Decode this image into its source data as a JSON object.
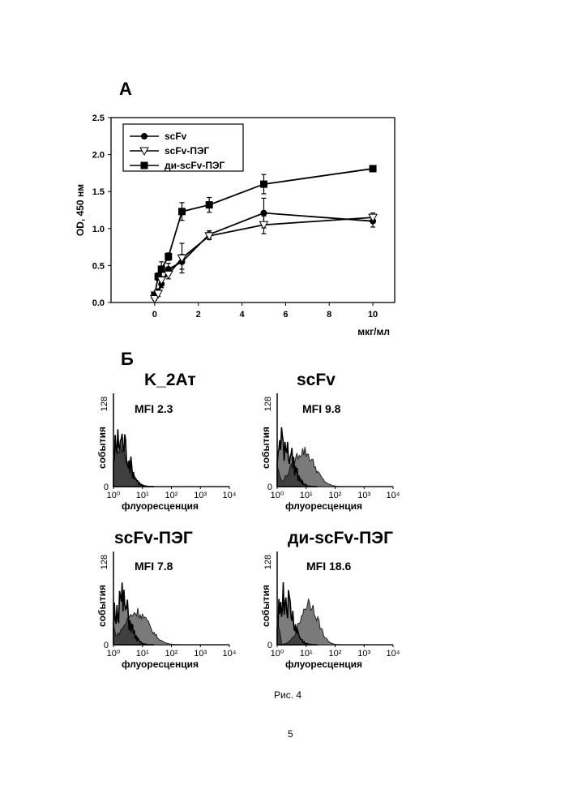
{
  "panel_a_label": "А",
  "panel_b_label": "Б",
  "caption": "Рис. 4",
  "page_number": "5",
  "chart_data": [
    {
      "type": "line",
      "xlabel": "мкг/мл",
      "ylabel": "OD, 450 нм",
      "xlim": [
        -2,
        11
      ],
      "ylim": [
        0,
        2.5
      ],
      "xticks": [
        0,
        2,
        4,
        6,
        8,
        10
      ],
      "yticks": [
        0.0,
        0.5,
        1.0,
        1.5,
        2.0,
        2.5
      ],
      "ytick_labels": [
        "0.0",
        "0.5",
        "1.0",
        "1.5",
        "2.0",
        "2.5"
      ],
      "grid": false,
      "legend_position": "top-left",
      "series": [
        {
          "name": "scFv",
          "marker": "circle",
          "x": [
            0,
            0.16,
            0.31,
            0.63,
            1.25,
            2.5,
            5,
            10
          ],
          "y": [
            0.08,
            0.15,
            0.25,
            0.45,
            0.55,
            0.92,
            1.21,
            1.1
          ],
          "err": [
            0.03,
            0.03,
            0.05,
            0.08,
            0.1,
            0.05,
            0.2,
            0.08
          ]
        },
        {
          "name": "scFv-ПЭГ",
          "marker": "triangle-down",
          "x": [
            0,
            0.16,
            0.31,
            0.63,
            1.25,
            2.5,
            5,
            10
          ],
          "y": [
            0.05,
            0.12,
            0.3,
            0.38,
            0.6,
            0.9,
            1.05,
            1.15
          ],
          "err": [
            0.02,
            0.04,
            0.05,
            0.06,
            0.2,
            0.05,
            0.12,
            0.06
          ]
        },
        {
          "name": "ди-scFv-ПЭГ",
          "marker": "square",
          "x": [
            0,
            0.16,
            0.31,
            0.63,
            1.25,
            2.5,
            5,
            10
          ],
          "y": [
            0.1,
            0.35,
            0.45,
            0.62,
            1.23,
            1.32,
            1.6,
            1.81
          ],
          "err": [
            0.04,
            0.05,
            0.1,
            0.05,
            0.12,
            0.1,
            0.13,
            0.04
          ]
        }
      ]
    },
    {
      "type": "area",
      "title": "K_2Ат",
      "annotation": "MFI 2.3",
      "xlabel": "флуоресценция",
      "ylabel": "события",
      "x_scale": "log",
      "xlim": [
        1,
        10000
      ],
      "ylim": [
        0,
        128
      ],
      "xtick_labels": [
        "10⁰",
        "10¹",
        "10²",
        "10³",
        "10⁴"
      ],
      "ytick_labels": [
        "0",
        "128"
      ],
      "filled_peak_decade": 0.2,
      "filled_peak_height": 0.42,
      "filled_peak_width": 0.32,
      "outline_peak_decade": 0.25,
      "outline_peak_height": 0.52
    },
    {
      "type": "area",
      "title": "scFv",
      "annotation": "MFI 9.8",
      "xlabel": "флуоресценция",
      "ylabel": "события",
      "x_scale": "log",
      "xlim": [
        1,
        10000
      ],
      "ylim": [
        0,
        128
      ],
      "xtick_labels": [
        "10⁰",
        "10¹",
        "10²",
        "10³",
        "10⁴"
      ],
      "ytick_labels": [
        "0",
        "128"
      ],
      "filled_peak_decade": 0.9,
      "filled_peak_height": 0.38,
      "filled_peak_width": 0.38,
      "outline_peak_decade": 0.25,
      "outline_peak_height": 0.5
    },
    {
      "type": "area",
      "title": "scFv-ПЭГ",
      "annotation": "MFI 7.8",
      "xlabel": "флуоресценция",
      "ylabel": "события",
      "x_scale": "log",
      "xlim": [
        1,
        10000
      ],
      "ylim": [
        0,
        128
      ],
      "xtick_labels": [
        "10⁰",
        "10¹",
        "10²",
        "10³",
        "10⁴"
      ],
      "ytick_labels": [
        "0",
        "128"
      ],
      "filled_peak_decade": 0.8,
      "filled_peak_height": 0.35,
      "filled_peak_width": 0.42,
      "outline_peak_decade": 0.25,
      "outline_peak_height": 0.5
    },
    {
      "type": "area",
      "title": "ди-scFv-ПЭГ",
      "annotation": "MFI 18.6",
      "xlabel": "флуоресценция",
      "ylabel": "события",
      "x_scale": "log",
      "xlim": [
        1,
        10000
      ],
      "ylim": [
        0,
        128
      ],
      "xtick_labels": [
        "10⁰",
        "10¹",
        "10²",
        "10³",
        "10⁴"
      ],
      "ytick_labels": [
        "0",
        "128"
      ],
      "filled_peak_decade": 1.1,
      "filled_peak_height": 0.45,
      "filled_peak_width": 0.3,
      "outline_peak_decade": 0.25,
      "outline_peak_height": 0.5
    }
  ]
}
